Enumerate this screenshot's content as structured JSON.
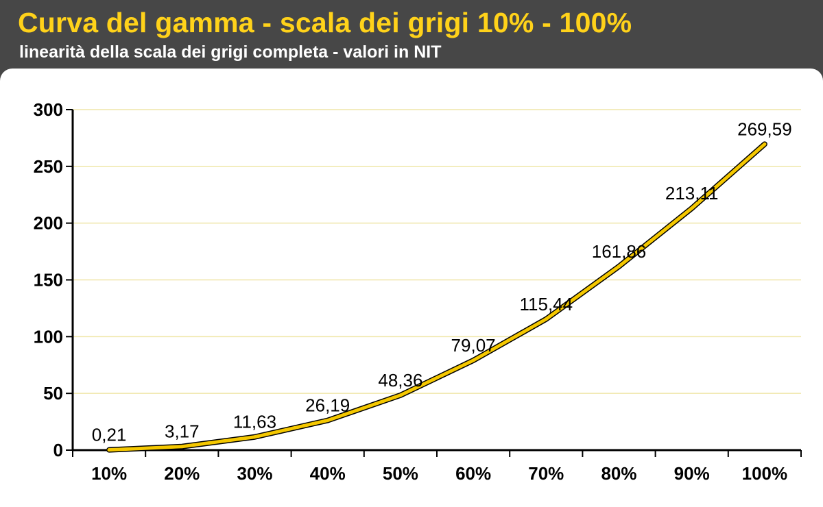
{
  "header": {
    "title": "Curva del gamma - scala dei grigi 10% - 100%",
    "subtitle": "linearità della scala dei grigi completa - valori in NIT"
  },
  "colors": {
    "background": "#474747",
    "title": "#ffd21a",
    "line": "#f5c800",
    "line_outline": "#000000",
    "gridline": "#efe6a8"
  },
  "chart_data": {
    "type": "line",
    "categories": [
      "10%",
      "20%",
      "30%",
      "40%",
      "50%",
      "60%",
      "70%",
      "80%",
      "90%",
      "100%"
    ],
    "series": [
      {
        "values": [
          0.21,
          3.17,
          11.63,
          26.19,
          48.36,
          79.07,
          115.44,
          161.86,
          213.11,
          269.59
        ],
        "labels": [
          "0,21",
          "3,17",
          "11,63",
          "26,19",
          "48,36",
          "79,07",
          "115,44",
          "161,86",
          "213,11",
          "269,59"
        ]
      }
    ],
    "yticks": [
      "0",
      "50",
      "100",
      "150",
      "200",
      "250",
      "300"
    ],
    "ylim": [
      0,
      300
    ],
    "grid": true,
    "legend": "none"
  }
}
